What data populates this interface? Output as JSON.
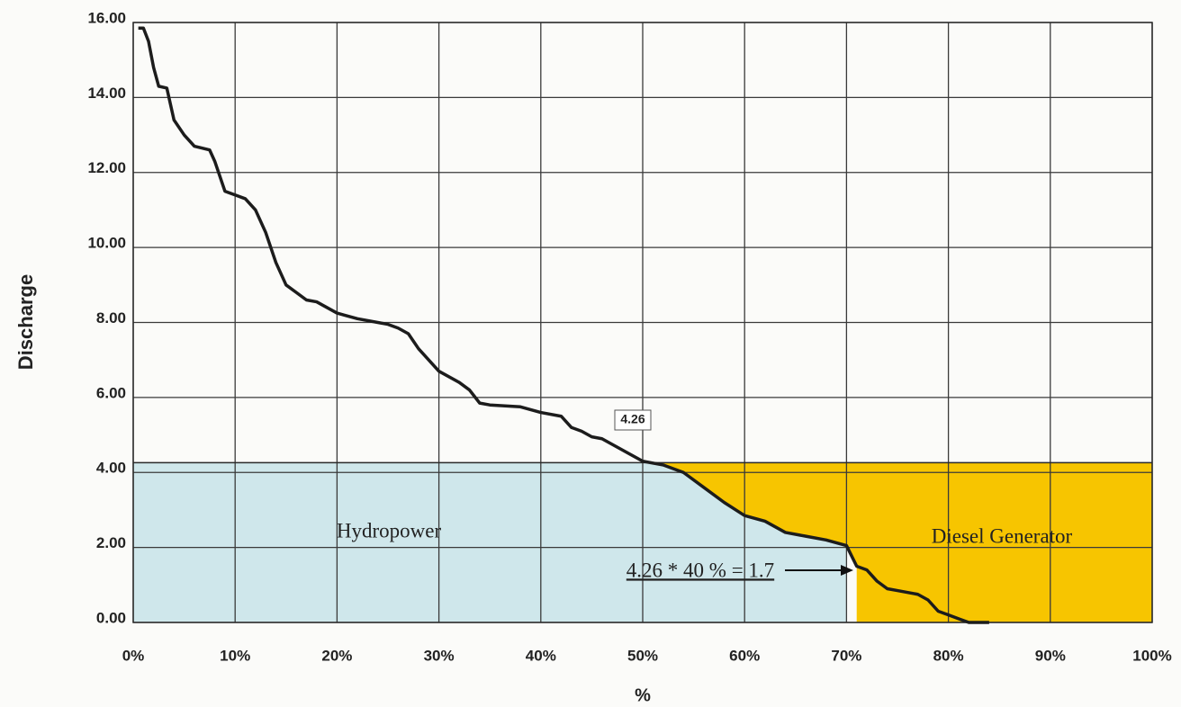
{
  "chart_data": {
    "type": "line",
    "xlabel": "%",
    "ylabel": "Discharge",
    "x": [
      0.5,
      1.0,
      1.5,
      2.0,
      2.5,
      3.3,
      4.0,
      5.0,
      6.0,
      7.5,
      8.0,
      9.0,
      10.0,
      11.0,
      12.0,
      13.0,
      14.0,
      15.0,
      16.0,
      17.0,
      18.0,
      19.0,
      20.0,
      22.0,
      24.0,
      25.0,
      26.0,
      27.0,
      28.0,
      29.0,
      30.0,
      32.0,
      33.0,
      34.0,
      35.0,
      38.0,
      40.0,
      42.0,
      43.0,
      44.0,
      45.0,
      46.0,
      48.0,
      50.0,
      52.0,
      54.0,
      56.0,
      58.0,
      60.0,
      62.0,
      64.0,
      66.0,
      68.0,
      70.0,
      71.0,
      72.0,
      73.0,
      74.0,
      75.0,
      77.0,
      78.0,
      79.0,
      80.0,
      81.0,
      82.0,
      84.0
    ],
    "values": [
      15.85,
      15.85,
      15.5,
      14.8,
      14.3,
      14.25,
      13.4,
      13.0,
      12.7,
      12.6,
      12.3,
      11.5,
      11.4,
      11.3,
      11.0,
      10.4,
      9.6,
      9.0,
      8.8,
      8.6,
      8.55,
      8.4,
      8.25,
      8.1,
      8.0,
      7.95,
      7.85,
      7.7,
      7.3,
      7.0,
      6.7,
      6.4,
      6.2,
      5.85,
      5.8,
      5.75,
      5.6,
      5.5,
      5.2,
      5.1,
      4.95,
      4.9,
      4.6,
      4.3,
      4.2,
      4.0,
      3.6,
      3.2,
      2.85,
      2.7,
      2.4,
      2.3,
      2.2,
      2.05,
      1.5,
      1.4,
      1.1,
      0.9,
      0.85,
      0.75,
      0.6,
      0.3,
      0.2,
      0.1,
      0.0,
      0.0
    ],
    "color": "#1c1c1c",
    "xlim": [
      0,
      100
    ],
    "ylim": [
      0,
      16
    ],
    "xticks": [
      {
        "value": 0,
        "label": "0%"
      },
      {
        "value": 10,
        "label": "10%"
      },
      {
        "value": 20,
        "label": "20%"
      },
      {
        "value": 30,
        "label": "30%"
      },
      {
        "value": 40,
        "label": "40%"
      },
      {
        "value": 50,
        "label": "50%"
      },
      {
        "value": 60,
        "label": "60%"
      },
      {
        "value": 70,
        "label": "70%"
      },
      {
        "value": 80,
        "label": "80%"
      },
      {
        "value": 90,
        "label": "90%"
      },
      {
        "value": 100,
        "label": "100%"
      }
    ],
    "yticks": [
      {
        "value": 0,
        "label": "0.00"
      },
      {
        "value": 2,
        "label": "2.00"
      },
      {
        "value": 4,
        "label": "4.00"
      },
      {
        "value": 6,
        "label": "6.00"
      },
      {
        "value": 8,
        "label": "8.00"
      },
      {
        "value": 10,
        "label": "10.00"
      },
      {
        "value": 12,
        "label": "12.00"
      },
      {
        "value": 14,
        "label": "14.00"
      },
      {
        "value": 16,
        "label": "16.00"
      }
    ],
    "grid": true,
    "threshold": {
      "value": 4.26,
      "label": "4.26"
    },
    "regions": [
      {
        "name": "Hydropower",
        "color": "#cfe7eb",
        "xlim": [
          0,
          70
        ]
      },
      {
        "name": "Diesel Generator",
        "color": "#f7c500",
        "xlim": [
          71,
          100
        ]
      }
    ],
    "annotation": "4.26 * 40 % = 1.7"
  }
}
